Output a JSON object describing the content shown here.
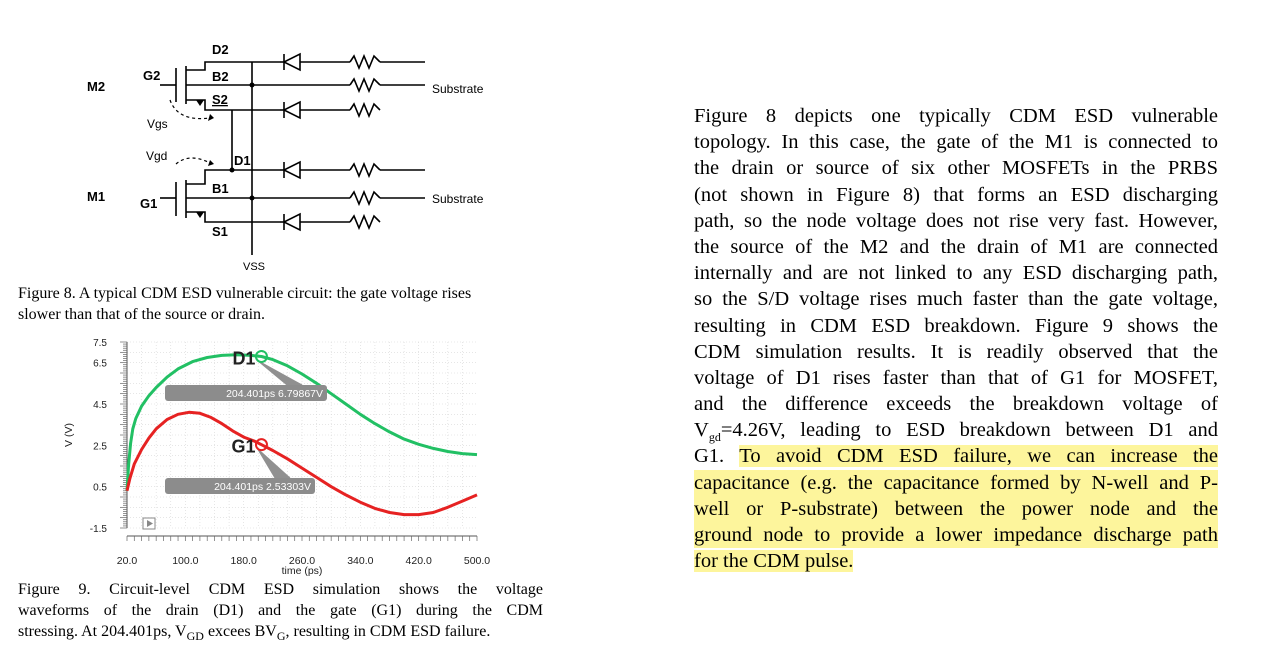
{
  "figure8": {
    "labels": {
      "m2": "M2",
      "m1": "M1",
      "g2": "G2",
      "g1": "G1",
      "d2": "D2",
      "b2": "B2",
      "s2": "S2",
      "d1": "D1",
      "b1": "B1",
      "s1": "S1",
      "vgs": "Vgs",
      "vgd": "Vgd",
      "substrate_top": "Substrate",
      "substrate_bottom": "Substrate",
      "vss": "VSS"
    },
    "caption": [
      "Figure 8. A typical CDM ESD vulnerable circuit: the gate voltage rises",
      "slower than that of the source or drain."
    ]
  },
  "figure9": {
    "caption": {
      "line1": "Figure  9.  Circuit-level  CDM  ESD  simulation  shows  the  voltage",
      "line2": "waveforms  of  the  drain  (D1)  and  the  gate  (G1)  during  the  CDM",
      "line3_a": "stressing. At 204.401ps, V",
      "line3_sub1": "GD",
      "line3_b": " excees BV",
      "line3_sub2": "G",
      "line3_c": ", resulting in CDM ESD failure."
    }
  },
  "chart_data": {
    "type": "line",
    "xlabel": "time (ps)",
    "ylabel": "V (V)",
    "xlim": [
      20,
      500
    ],
    "ylim": [
      -1.5,
      7.5
    ],
    "x_ticks": [
      "20.0",
      "100.0",
      "180.0",
      "260.0",
      "340.0",
      "420.0",
      "500.0"
    ],
    "y_ticks": [
      "7.5",
      "6.5",
      "4.5",
      "2.5",
      "0.5",
      "-1.5"
    ],
    "grid": true,
    "series": [
      {
        "name": "D1",
        "color": "#22c064",
        "x": [
          20,
          22,
          25,
          28,
          32,
          40,
          50,
          60,
          75,
          90,
          110,
          130,
          150,
          170,
          190,
          204.401,
          220,
          240,
          260,
          280,
          300,
          320,
          340,
          360,
          380,
          400,
          420,
          440,
          460,
          480,
          500
        ],
        "y": [
          0.3,
          1.5,
          2.6,
          3.3,
          3.8,
          4.4,
          4.9,
          5.3,
          5.8,
          6.2,
          6.55,
          6.75,
          6.85,
          6.88,
          6.85,
          6.79867,
          6.65,
          6.35,
          5.95,
          5.5,
          5.0,
          4.5,
          4.0,
          3.55,
          3.15,
          2.8,
          2.55,
          2.35,
          2.2,
          2.1,
          2.05
        ]
      },
      {
        "name": "G1",
        "color": "#e62222",
        "x": [
          20,
          24,
          30,
          40,
          50,
          60,
          75,
          90,
          105,
          120,
          135,
          150,
          165,
          180,
          195,
          204.401,
          220,
          240,
          260,
          280,
          300,
          320,
          340,
          360,
          380,
          400,
          420,
          440,
          460,
          480,
          500
        ],
        "y": [
          0.3,
          0.9,
          1.6,
          2.3,
          2.85,
          3.3,
          3.75,
          4.0,
          4.1,
          4.05,
          3.85,
          3.55,
          3.2,
          2.9,
          2.7,
          2.53303,
          2.25,
          1.85,
          1.4,
          0.95,
          0.5,
          0.1,
          -0.25,
          -0.55,
          -0.75,
          -0.85,
          -0.85,
          -0.75,
          -0.5,
          -0.2,
          0.1
        ]
      }
    ],
    "annotations": [
      {
        "series": "D1",
        "label": "D1",
        "x": 204.401,
        "y": 6.79867,
        "text": "204.401ps 6.79867V"
      },
      {
        "series": "G1",
        "label": "G1",
        "x": 204.401,
        "y": 2.53303,
        "text": "204.401ps 2.53303V"
      }
    ]
  },
  "paragraph": {
    "lines": [
      "Figure  8  depicts  one  typically  CDM  ESD  vulnerable",
      "topology. In this case, the gate of the M1 is connected to",
      "the drain or source of six other MOSFETs in the PRBS",
      "(not shown in Figure 8) that forms an ESD discharging",
      "path, so the node voltage does not rise very fast. However,",
      "the source of the M2 and the drain of M1 are connected",
      "internally and are not linked to any ESD discharging path,",
      "so the S/D voltage rises much faster than the gate voltage,",
      "resulting in CDM ESD breakdown. Figure 9 shows the",
      "CDM  simulation  results.  It  is  readily  observed  that  the",
      "voltage of D1 rises faster than that of G1 for MOSFET,",
      "and  the  difference  exceeds  the  breakdown  voltage  of"
    ],
    "line13_a": "V",
    "line13_sub": "gd",
    "line13_b": "=4.26V, leading to ESD breakdown between D1 and",
    "line14_plain": "G1. ",
    "line14_hl": "To avoid CDM ESD failure, we can increase the",
    "highlighted_lines": [
      "capacitance (e.g. the capacitance formed by N-well and P-",
      "well  or  P-substrate)  between  the  power  node  and  the",
      "ground node to provide a lower impedance discharge path",
      "for the CDM pulse."
    ]
  }
}
